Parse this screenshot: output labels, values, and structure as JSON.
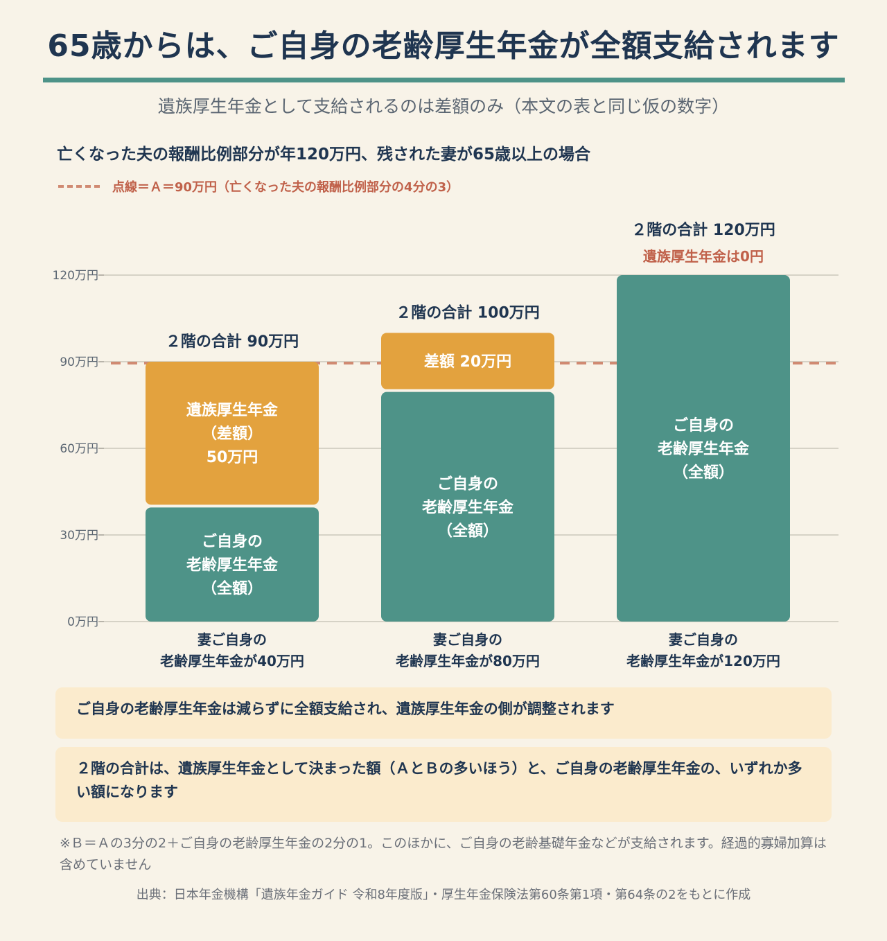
{
  "title": "65歳からは、ご自身の老齢厚生年金が全額支給されます",
  "subtitle": "遺族厚生年金として支給されるのは差額のみ（本文の表と同じ仮の数字）",
  "scenario": "亡くなった夫の報酬比例部分が年120万円、残された妻が65歳以上の場合",
  "legend": {
    "dashed_line_label": "点線＝Ａ＝90万円（亡くなった夫の報酬比例部分の4分の3）"
  },
  "colors": {
    "own_pension": "#4e9388",
    "survivor_pension": "#e3a23e",
    "reference_line": "#d08a72",
    "accent_text": "#c0614a",
    "dark_text": "#1f3550",
    "background": "#f8f3e8",
    "note_background": "#fbebcd"
  },
  "chart_data": {
    "type": "bar",
    "stacked": true,
    "unit": "万円",
    "ylim": [
      0,
      120
    ],
    "yticks": [
      0,
      30,
      60,
      90,
      120
    ],
    "ytick_labels": [
      "0万円",
      "30万円",
      "60万円",
      "90万円",
      "120万円"
    ],
    "grid": true,
    "reference_line": {
      "value": 90
    },
    "categories": [
      [
        "妻ご自身の",
        "老齢厚生年金が40万円"
      ],
      [
        "妻ご自身の",
        "老齢厚生年金が80万円"
      ],
      [
        "妻ご自身の",
        "老齢厚生年金が120万円"
      ]
    ],
    "series": [
      {
        "key": "own",
        "values": [
          40,
          80,
          120
        ],
        "labels": [
          [
            "ご自身の",
            "老齢厚生年金",
            "（全額）"
          ],
          [
            "ご自身の",
            "老齢厚生年金",
            "（全額）"
          ],
          [
            "ご自身の",
            "老齢厚生年金",
            "（全額）"
          ]
        ]
      },
      {
        "key": "survivor",
        "values": [
          50,
          20,
          0
        ],
        "labels": [
          [
            "遺族厚生年金",
            "（差額）",
            "50万円"
          ],
          [
            "差額 20万円"
          ],
          []
        ]
      }
    ],
    "totals": [
      90,
      100,
      120
    ],
    "total_labels": [
      "２階の合計 90万円",
      "２階の合計 100万円",
      "２階の合計 120万円"
    ],
    "extra_annotations": [
      "",
      "",
      "遺族厚生年金は0円"
    ]
  },
  "notes": [
    "ご自身の老齢厚生年金は減らずに全額支給され、遺族厚生年金の側が調整されます",
    "２階の合計は、遺族厚生年金として決まった額（ＡとＢの多いほう）と、ご自身の老齢厚生年金の、いずれか多い額になります"
  ],
  "footnote": "※Ｂ＝Ａの3分の2＋ご自身の老齢厚生年金の2分の1。このほかに、ご自身の老齢基礎年金などが支給されます。経過的寡婦加算は含めていません",
  "source": "出典：日本年金機構「遺族年金ガイド 令和8年度版」・厚生年金保険法第60条第1項・第64条の2をもとに作成"
}
